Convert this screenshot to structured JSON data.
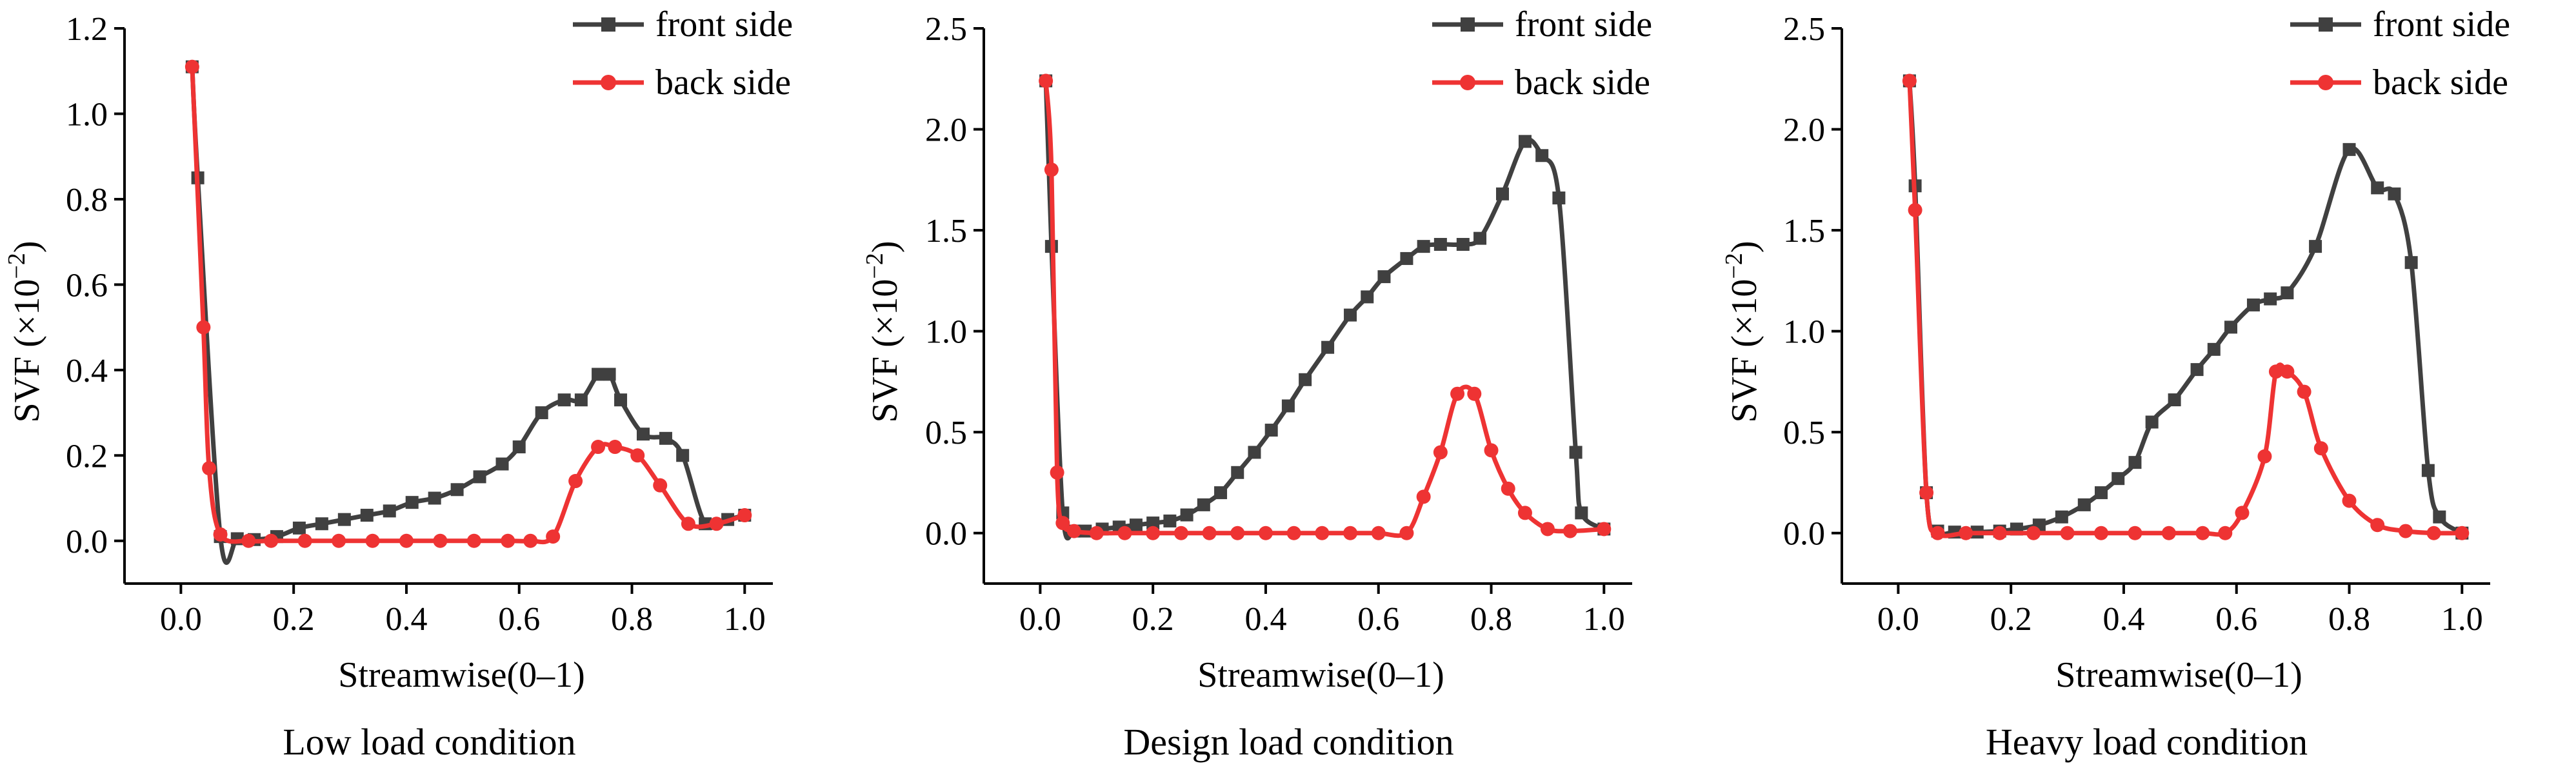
{
  "chart_data": [
    {
      "type": "line",
      "caption": "Low load condition",
      "xlabel": "Streamwise(0–1)",
      "ylabel_main": "SVF (×10",
      "ylabel_exp": "−2",
      "ylabel_close": ")",
      "xlim": [
        -0.1,
        1.05
      ],
      "ylim": [
        -0.1,
        1.2
      ],
      "xticks": [
        0.0,
        0.2,
        0.4,
        0.6,
        0.8,
        1.0
      ],
      "xtick_labels": [
        "0.0",
        "0.2",
        "0.4",
        "0.6",
        "0.8",
        "1.0"
      ],
      "yticks": [
        0.0,
        0.2,
        0.4,
        0.6,
        0.8,
        1.0,
        1.2
      ],
      "ytick_labels": [
        "0.0",
        "0.2",
        "0.4",
        "0.6",
        "0.8",
        "1.0",
        "1.2"
      ],
      "legend_position": "top-right",
      "series": [
        {
          "name": "front side",
          "color": "#404040",
          "marker": "square",
          "points": [
            [
              0.02,
              1.11
            ],
            [
              0.03,
              0.85
            ],
            [
              0.07,
              0.01
            ],
            [
              0.1,
              0.005
            ],
            [
              0.13,
              0.003
            ],
            [
              0.17,
              0.01
            ],
            [
              0.21,
              0.03
            ],
            [
              0.25,
              0.04
            ],
            [
              0.29,
              0.05
            ],
            [
              0.33,
              0.06
            ],
            [
              0.37,
              0.07
            ],
            [
              0.41,
              0.09
            ],
            [
              0.45,
              0.1
            ],
            [
              0.49,
              0.12
            ],
            [
              0.53,
              0.15
            ],
            [
              0.57,
              0.18
            ],
            [
              0.6,
              0.22
            ],
            [
              0.64,
              0.3
            ],
            [
              0.68,
              0.33
            ],
            [
              0.71,
              0.33
            ],
            [
              0.74,
              0.39
            ],
            [
              0.76,
              0.39
            ],
            [
              0.78,
              0.33
            ],
            [
              0.82,
              0.25
            ],
            [
              0.86,
              0.24
            ],
            [
              0.89,
              0.2
            ],
            [
              0.93,
              0.04
            ],
            [
              0.97,
              0.05
            ],
            [
              1.0,
              0.06
            ]
          ]
        },
        {
          "name": "back side",
          "color": "#ee3333",
          "marker": "circle",
          "points": [
            [
              0.02,
              1.11
            ],
            [
              0.04,
              0.5
            ],
            [
              0.05,
              0.17
            ],
            [
              0.07,
              0.015
            ],
            [
              0.12,
              0.0
            ],
            [
              0.16,
              0.0
            ],
            [
              0.22,
              0.0
            ],
            [
              0.28,
              0.0
            ],
            [
              0.34,
              0.0
            ],
            [
              0.4,
              0.0
            ],
            [
              0.46,
              0.0
            ],
            [
              0.52,
              0.0
            ],
            [
              0.58,
              0.0
            ],
            [
              0.62,
              0.0
            ],
            [
              0.66,
              0.01
            ],
            [
              0.7,
              0.14
            ],
            [
              0.74,
              0.22
            ],
            [
              0.77,
              0.22
            ],
            [
              0.81,
              0.2
            ],
            [
              0.85,
              0.13
            ],
            [
              0.9,
              0.04
            ],
            [
              0.95,
              0.04
            ],
            [
              1.0,
              0.06
            ]
          ]
        }
      ]
    },
    {
      "type": "line",
      "caption": "Design load condition",
      "xlabel": "Streamwise(0–1)",
      "ylabel_main": "SVF (×10",
      "ylabel_exp": "−2",
      "ylabel_close": ")",
      "xlim": [
        -0.1,
        1.05
      ],
      "ylim": [
        -0.25,
        2.5
      ],
      "xticks": [
        0.0,
        0.2,
        0.4,
        0.6,
        0.8,
        1.0
      ],
      "xtick_labels": [
        "0.0",
        "0.2",
        "0.4",
        "0.6",
        "0.8",
        "1.0"
      ],
      "yticks": [
        0.0,
        0.5,
        1.0,
        1.5,
        2.0,
        2.5
      ],
      "ytick_labels": [
        "0.0",
        "0.5",
        "1.0",
        "1.5",
        "2.0",
        "2.5"
      ],
      "legend_position": "top-right",
      "series": [
        {
          "name": "front side",
          "color": "#404040",
          "marker": "square",
          "points": [
            [
              0.01,
              2.24
            ],
            [
              0.02,
              1.42
            ],
            [
              0.04,
              0.1
            ],
            [
              0.06,
              0.01
            ],
            [
              0.08,
              0.01
            ],
            [
              0.11,
              0.02
            ],
            [
              0.14,
              0.03
            ],
            [
              0.17,
              0.04
            ],
            [
              0.2,
              0.05
            ],
            [
              0.23,
              0.06
            ],
            [
              0.26,
              0.09
            ],
            [
              0.29,
              0.14
            ],
            [
              0.32,
              0.2
            ],
            [
              0.35,
              0.3
            ],
            [
              0.38,
              0.4
            ],
            [
              0.41,
              0.51
            ],
            [
              0.44,
              0.63
            ],
            [
              0.47,
              0.76
            ],
            [
              0.51,
              0.92
            ],
            [
              0.55,
              1.08
            ],
            [
              0.58,
              1.17
            ],
            [
              0.61,
              1.27
            ],
            [
              0.65,
              1.36
            ],
            [
              0.68,
              1.42
            ],
            [
              0.71,
              1.43
            ],
            [
              0.75,
              1.43
            ],
            [
              0.78,
              1.46
            ],
            [
              0.82,
              1.68
            ],
            [
              0.86,
              1.94
            ],
            [
              0.89,
              1.87
            ],
            [
              0.92,
              1.66
            ],
            [
              0.95,
              0.4
            ],
            [
              0.96,
              0.1
            ],
            [
              1.0,
              0.02
            ]
          ]
        },
        {
          "name": "back side",
          "color": "#ee3333",
          "marker": "circle",
          "points": [
            [
              0.01,
              2.24
            ],
            [
              0.02,
              1.8
            ],
            [
              0.03,
              0.3
            ],
            [
              0.04,
              0.05
            ],
            [
              0.06,
              0.01
            ],
            [
              0.1,
              0.0
            ],
            [
              0.15,
              0.0
            ],
            [
              0.2,
              0.0
            ],
            [
              0.25,
              0.0
            ],
            [
              0.3,
              0.0
            ],
            [
              0.35,
              0.0
            ],
            [
              0.4,
              0.0
            ],
            [
              0.45,
              0.0
            ],
            [
              0.5,
              0.0
            ],
            [
              0.55,
              0.0
            ],
            [
              0.6,
              0.0
            ],
            [
              0.65,
              0.0
            ],
            [
              0.68,
              0.18
            ],
            [
              0.71,
              0.4
            ],
            [
              0.74,
              0.69
            ],
            [
              0.77,
              0.69
            ],
            [
              0.8,
              0.41
            ],
            [
              0.83,
              0.22
            ],
            [
              0.86,
              0.1
            ],
            [
              0.9,
              0.02
            ],
            [
              0.94,
              0.01
            ],
            [
              1.0,
              0.02
            ]
          ]
        }
      ]
    },
    {
      "type": "line",
      "caption": "Heavy load condition",
      "xlabel": "Streamwise(0–1)",
      "ylabel_main": "SVF (×10",
      "ylabel_exp": "−2",
      "ylabel_close": ")",
      "xlim": [
        -0.1,
        1.05
      ],
      "ylim": [
        -0.25,
        2.5
      ],
      "xticks": [
        0.0,
        0.2,
        0.4,
        0.6,
        0.8,
        1.0
      ],
      "xtick_labels": [
        "0.0",
        "0.2",
        "0.4",
        "0.6",
        "0.8",
        "1.0"
      ],
      "yticks": [
        0.0,
        0.5,
        1.0,
        1.5,
        2.0,
        2.5
      ],
      "ytick_labels": [
        "0.0",
        "0.5",
        "1.0",
        "1.5",
        "2.0",
        "2.5"
      ],
      "legend_position": "top-right",
      "series": [
        {
          "name": "front side",
          "color": "#404040",
          "marker": "square",
          "points": [
            [
              0.02,
              2.24
            ],
            [
              0.03,
              1.72
            ],
            [
              0.05,
              0.2
            ],
            [
              0.07,
              0.01
            ],
            [
              0.1,
              0.005
            ],
            [
              0.14,
              0.005
            ],
            [
              0.18,
              0.01
            ],
            [
              0.21,
              0.02
            ],
            [
              0.25,
              0.04
            ],
            [
              0.29,
              0.08
            ],
            [
              0.33,
              0.14
            ],
            [
              0.36,
              0.2
            ],
            [
              0.39,
              0.27
            ],
            [
              0.42,
              0.35
            ],
            [
              0.45,
              0.55
            ],
            [
              0.49,
              0.66
            ],
            [
              0.53,
              0.81
            ],
            [
              0.56,
              0.91
            ],
            [
              0.59,
              1.02
            ],
            [
              0.63,
              1.13
            ],
            [
              0.66,
              1.16
            ],
            [
              0.69,
              1.19
            ],
            [
              0.74,
              1.42
            ],
            [
              0.8,
              1.9
            ],
            [
              0.85,
              1.71
            ],
            [
              0.88,
              1.68
            ],
            [
              0.91,
              1.34
            ],
            [
              0.94,
              0.31
            ],
            [
              0.96,
              0.08
            ],
            [
              1.0,
              0.0
            ]
          ]
        },
        {
          "name": "back side",
          "color": "#ee3333",
          "marker": "circle",
          "points": [
            [
              0.02,
              2.24
            ],
            [
              0.03,
              1.6
            ],
            [
              0.05,
              0.2
            ],
            [
              0.07,
              0.0
            ],
            [
              0.12,
              0.0
            ],
            [
              0.18,
              0.0
            ],
            [
              0.24,
              0.0
            ],
            [
              0.3,
              0.0
            ],
            [
              0.36,
              0.0
            ],
            [
              0.42,
              0.0
            ],
            [
              0.48,
              0.0
            ],
            [
              0.54,
              0.0
            ],
            [
              0.58,
              0.0
            ],
            [
              0.61,
              0.1
            ],
            [
              0.65,
              0.38
            ],
            [
              0.67,
              0.8
            ],
            [
              0.69,
              0.8
            ],
            [
              0.72,
              0.7
            ],
            [
              0.75,
              0.42
            ],
            [
              0.8,
              0.16
            ],
            [
              0.85,
              0.04
            ],
            [
              0.9,
              0.01
            ],
            [
              0.95,
              0.0
            ],
            [
              1.0,
              0.0
            ]
          ]
        }
      ]
    }
  ]
}
